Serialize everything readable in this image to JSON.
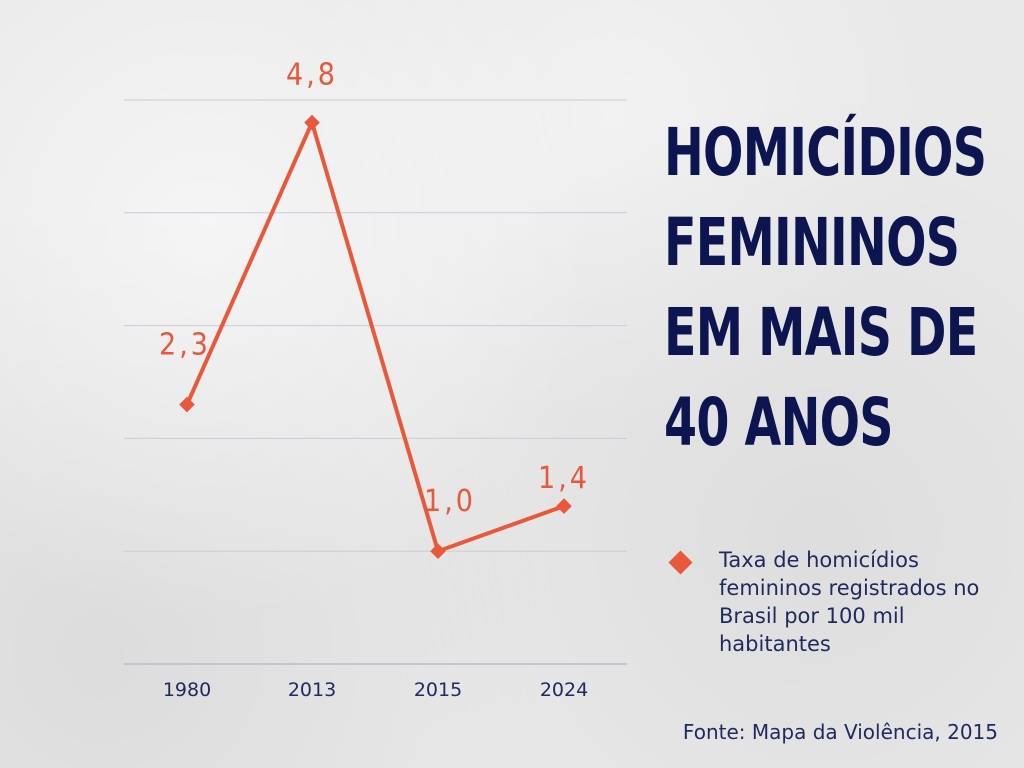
{
  "title_lines": [
    "HOMICÍDIOS",
    "FEMININOS",
    "EM MAIS DE",
    "40 ANOS"
  ],
  "legend": {
    "label": "Taxa de homicídios femininos registrados no Brasil por 100 mil habitantes"
  },
  "source": "Fonte: Mapa da Violência, 2015",
  "colors": {
    "line": "#e8583a",
    "title": "#0d1550",
    "text": "#1f2a5e",
    "grid": "#c9ccd8"
  },
  "chart_data": {
    "type": "line",
    "categories": [
      "1980",
      "2013",
      "2015",
      "2024"
    ],
    "series": [
      {
        "name": "Taxa de homicídios femininos registrados no Brasil por 100 mil habitantes",
        "values": [
          2.3,
          4.8,
          1.0,
          1.4
        ],
        "labels": [
          "2,3",
          "4,8",
          "1,0",
          "1,4"
        ]
      }
    ],
    "ylim": [
      0,
      5
    ],
    "grid": true,
    "legend_position": "right"
  }
}
